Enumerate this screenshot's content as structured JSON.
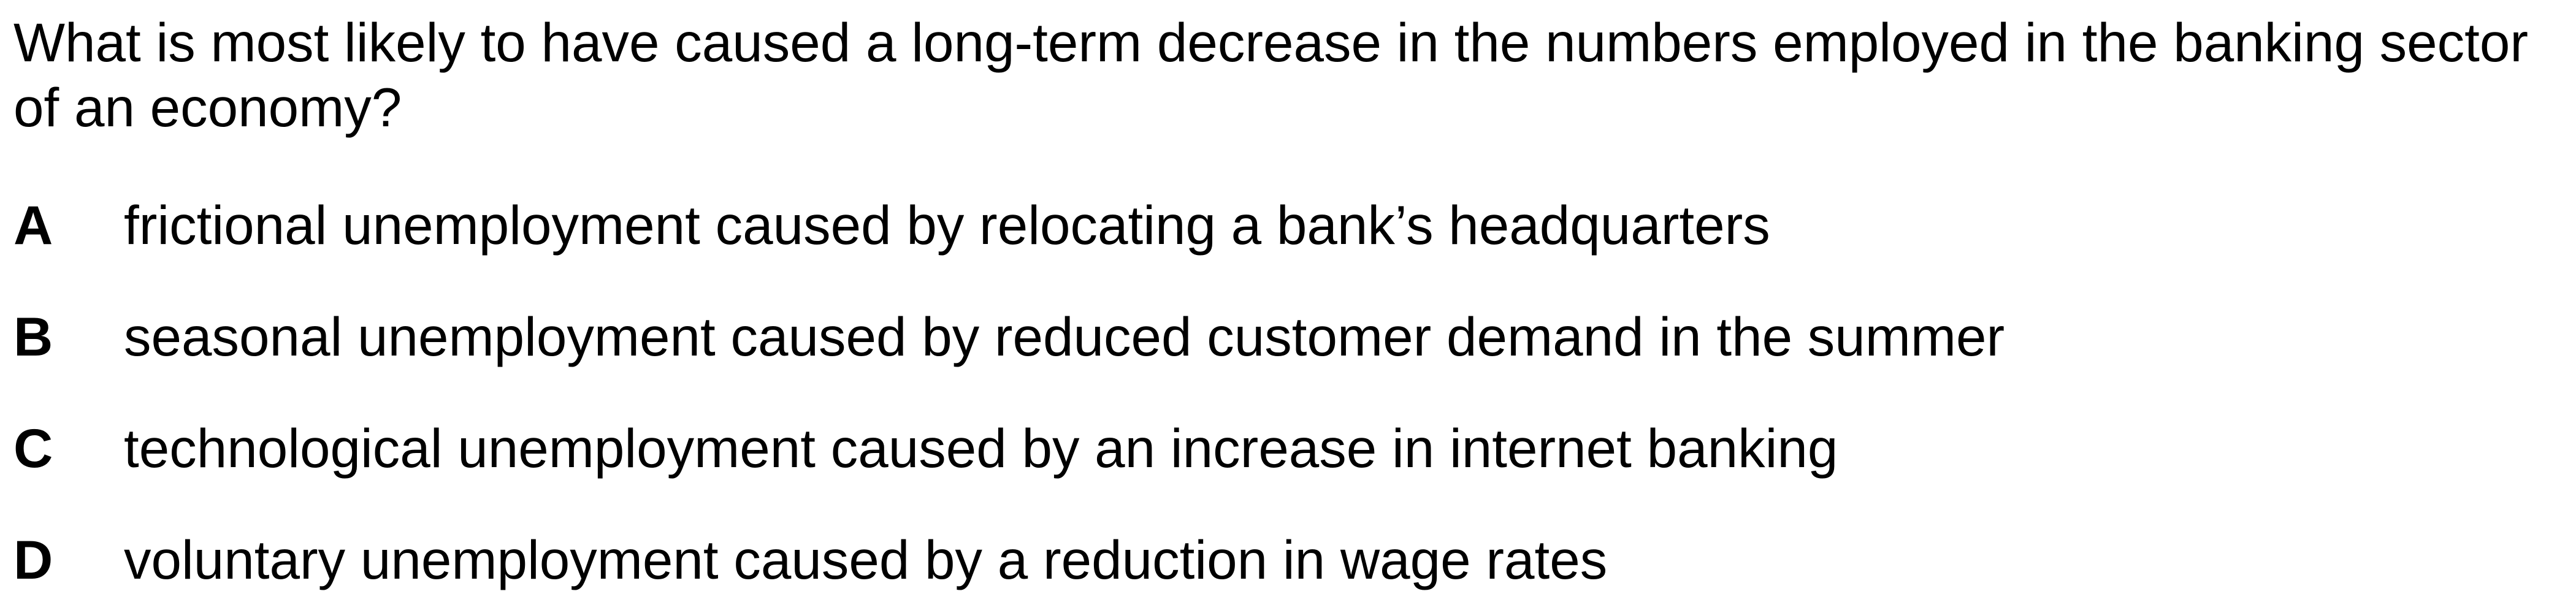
{
  "question": {
    "text": "What is most likely to have caused a long-term decrease in the numbers employed in the banking sector of an economy?"
  },
  "options": [
    {
      "letter": "A",
      "text": "frictional unemployment caused by relocating a bank’s headquarters"
    },
    {
      "letter": "B",
      "text": "seasonal unemployment caused by reduced customer demand in the summer"
    },
    {
      "letter": "C",
      "text": "technological unemployment caused by an increase in internet banking"
    },
    {
      "letter": "D",
      "text": "voluntary unemployment caused by a reduction in wage rates"
    }
  ]
}
